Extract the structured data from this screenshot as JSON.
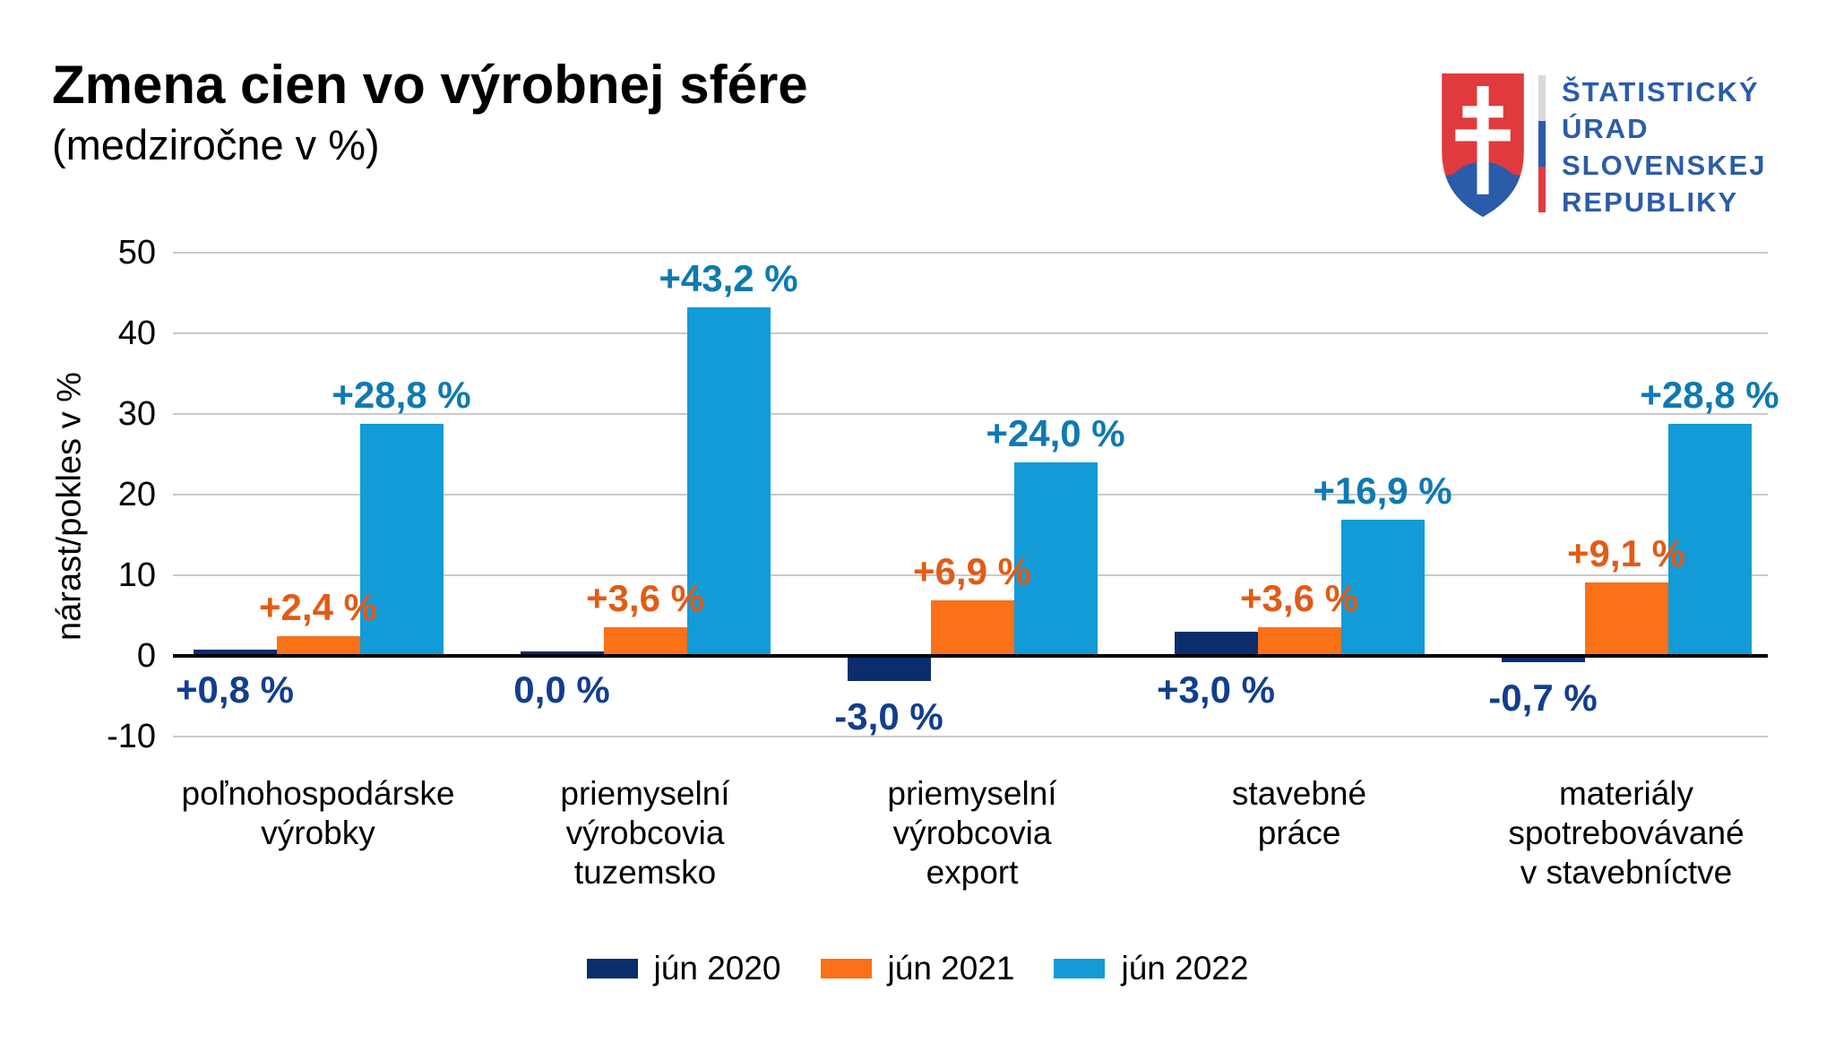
{
  "chart_data": {
    "type": "bar",
    "title": "Zmena cien vo výrobnej sfére",
    "subtitle": "(medziročne v %)",
    "ylabel": "nárast/pokles v %",
    "ylim": [
      -10,
      50
    ],
    "yticks": [
      50,
      40,
      30,
      20,
      10,
      0,
      -10
    ],
    "grid": true,
    "grid_color": "#c9c9c9",
    "axis_color": "#000000",
    "legend_position": "bottom-center",
    "categories": [
      "poľnohospodárske\nvýrobky",
      "priemyselní\nvýrobcovia\ntuzemsko",
      "priemyselní\nvýrobcovia\nexport",
      "stavebné\npráce",
      "materiály\nspotrebovávané\nv stavebníctve"
    ],
    "series": [
      {
        "name": "jún 2020",
        "color": "#0b2d6b",
        "label_color": "#123e8e",
        "values": [
          0.8,
          0.0,
          -3.0,
          3.0,
          -0.7
        ],
        "labels": [
          "+0,8 %",
          "0,0 %",
          "-3,0 %",
          "+3,0 %",
          "-0,7 %"
        ]
      },
      {
        "name": "jún 2021",
        "color": "#fa7118",
        "label_color": "#e25b16",
        "values": [
          2.4,
          3.6,
          6.9,
          3.6,
          9.1
        ],
        "labels": [
          "+2,4 %",
          "+3,6 %",
          "+6,9 %",
          "+3,6 %",
          "+9,1 %"
        ]
      },
      {
        "name": "jún 2022",
        "color": "#129bd7",
        "label_color": "#0f79b2",
        "values": [
          28.8,
          43.2,
          24.0,
          16.9,
          28.8
        ],
        "labels": [
          "+28,8 %",
          "+43,2 %",
          "+24,0 %",
          "+16,9 %",
          "+28,8 %"
        ]
      }
    ]
  },
  "logo": {
    "org_lines": [
      "ŠTATISTICKÝ",
      "ÚRAD",
      "SLOVENSKEJ",
      "REPUBLIKY"
    ],
    "colors": {
      "blue": "#2b5ca9",
      "red": "#e03a3e",
      "gray": "#d9d9d9",
      "white": "#ffffff"
    }
  }
}
